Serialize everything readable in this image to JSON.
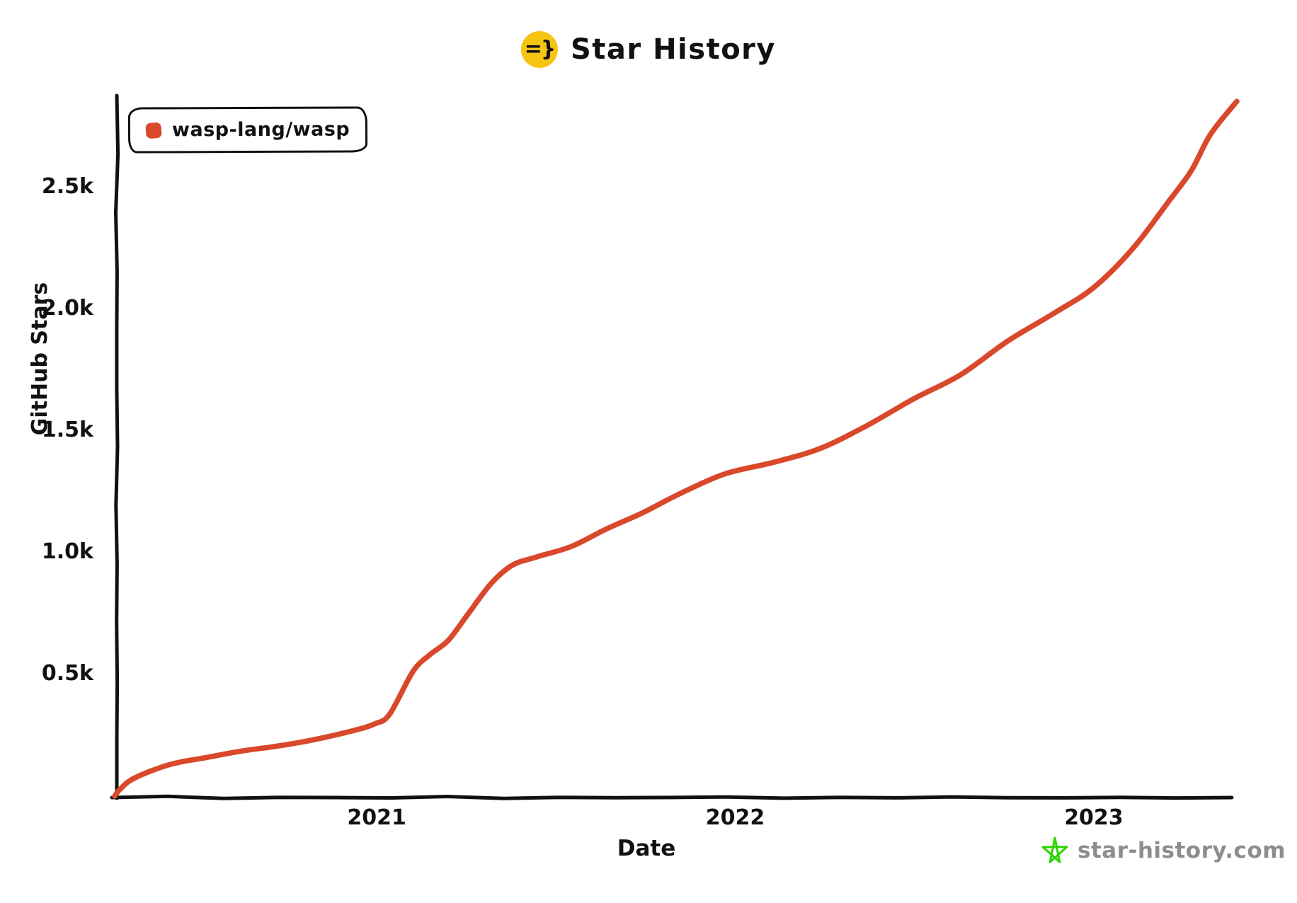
{
  "header": {
    "title": "Star History",
    "logo_glyph": "=}",
    "logo_bg": "#f6c413"
  },
  "legend": {
    "items": [
      {
        "label": "wasp-lang/wasp",
        "marker_color": "#d9482b"
      }
    ]
  },
  "watermark": {
    "text": "star-history.com",
    "icon": "star-icon",
    "icon_color": "#2cd402",
    "text_color": "#8d8d8d"
  },
  "colors": {
    "axis": "#111111",
    "background": "#ffffff"
  },
  "chart_data": {
    "type": "line",
    "title": "Star History",
    "xlabel": "Date",
    "ylabel": "GitHub Stars",
    "grid": false,
    "legend_position": "top-left",
    "xlim": [
      2020.269,
      2023.399
    ],
    "ylim": [
      0,
      2870
    ],
    "x_ticks": [
      {
        "value": 2021,
        "label": "2021"
      },
      {
        "value": 2022,
        "label": "2022"
      },
      {
        "value": 2023,
        "label": "2023"
      }
    ],
    "y_ticks": [
      {
        "value": 500,
        "label": "0.5k"
      },
      {
        "value": 1000,
        "label": "1.0k"
      },
      {
        "value": 1500,
        "label": "1.5k"
      },
      {
        "value": 2000,
        "label": "2.0k"
      },
      {
        "value": 2500,
        "label": "2.5k"
      }
    ],
    "series": [
      {
        "name": "wasp-lang/wasp",
        "color": "#d9482b",
        "points": [
          [
            2020.269,
            0
          ],
          [
            2020.285,
            30
          ],
          [
            2020.325,
            75
          ],
          [
            2020.423,
            130
          ],
          [
            2020.522,
            158
          ],
          [
            2020.621,
            185
          ],
          [
            2020.72,
            205
          ],
          [
            2020.818,
            230
          ],
          [
            2020.937,
            270
          ],
          [
            2020.996,
            298
          ],
          [
            2021.036,
            337
          ],
          [
            2021.101,
            512
          ],
          [
            2021.148,
            581
          ],
          [
            2021.199,
            639
          ],
          [
            2021.253,
            745
          ],
          [
            2021.318,
            872
          ],
          [
            2021.377,
            948
          ],
          [
            2021.444,
            982
          ],
          [
            2021.543,
            1026
          ],
          [
            2021.642,
            1099
          ],
          [
            2021.74,
            1163
          ],
          [
            2021.839,
            1238
          ],
          [
            2021.969,
            1323
          ],
          [
            2022.102,
            1370
          ],
          [
            2022.234,
            1427
          ],
          [
            2022.364,
            1520
          ],
          [
            2022.496,
            1631
          ],
          [
            2022.629,
            1732
          ],
          [
            2022.759,
            1869
          ],
          [
            2022.891,
            1986
          ],
          [
            2023.0,
            2090
          ],
          [
            2023.109,
            2250
          ],
          [
            2023.207,
            2440
          ],
          [
            2023.272,
            2570
          ],
          [
            2023.326,
            2720
          ],
          [
            2023.399,
            2855
          ]
        ]
      }
    ]
  }
}
